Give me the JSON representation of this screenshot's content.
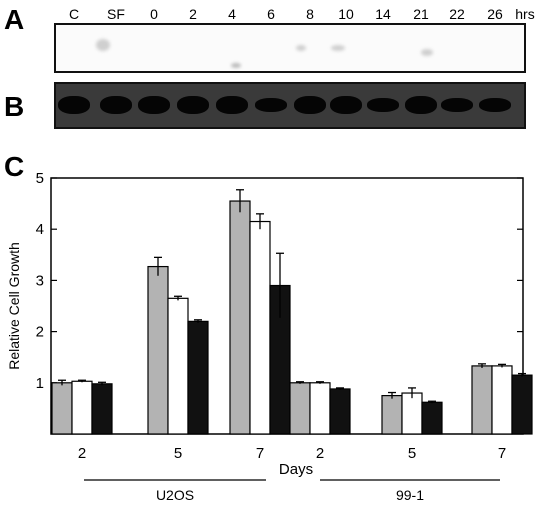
{
  "panels": {
    "a_label": "A",
    "b_label": "B",
    "c_label": "C"
  },
  "blot": {
    "lanes": [
      "C",
      "SF",
      "0",
      "2",
      "4",
      "6",
      "8",
      "10",
      "14",
      "21",
      "22",
      "26"
    ],
    "unit": "hrs"
  },
  "chart_data": {
    "type": "bar",
    "ylabel": "Relative Cell Growth",
    "xlabel": "Days",
    "ylim": [
      0,
      5
    ],
    "yticks": [
      1,
      2,
      3,
      4,
      5
    ],
    "groups": [
      {
        "name": "U2OS",
        "days": [
          "2",
          "5",
          "7"
        ]
      },
      {
        "name": "99-1",
        "days": [
          "2",
          "5",
          "7"
        ]
      }
    ],
    "categories": [
      "2",
      "5",
      "7",
      "2",
      "5",
      "7"
    ],
    "series": [
      {
        "color": "#b3b3b3",
        "values": [
          1.0,
          3.27,
          4.55,
          1.0,
          0.75,
          1.33
        ],
        "errors": [
          0.05,
          0.18,
          0.22,
          0.02,
          0.06,
          0.04
        ]
      },
      {
        "color": "#ffffff",
        "values": [
          1.03,
          2.65,
          4.15,
          1.0,
          0.8,
          1.33
        ],
        "errors": [
          0.02,
          0.04,
          0.15,
          0.02,
          0.1,
          0.03
        ]
      },
      {
        "color": "#111111",
        "values": [
          0.98,
          2.2,
          2.9,
          0.88,
          0.62,
          1.15
        ],
        "errors": [
          0.03,
          0.03,
          0.63,
          0.02,
          0.02,
          0.03
        ]
      }
    ]
  }
}
